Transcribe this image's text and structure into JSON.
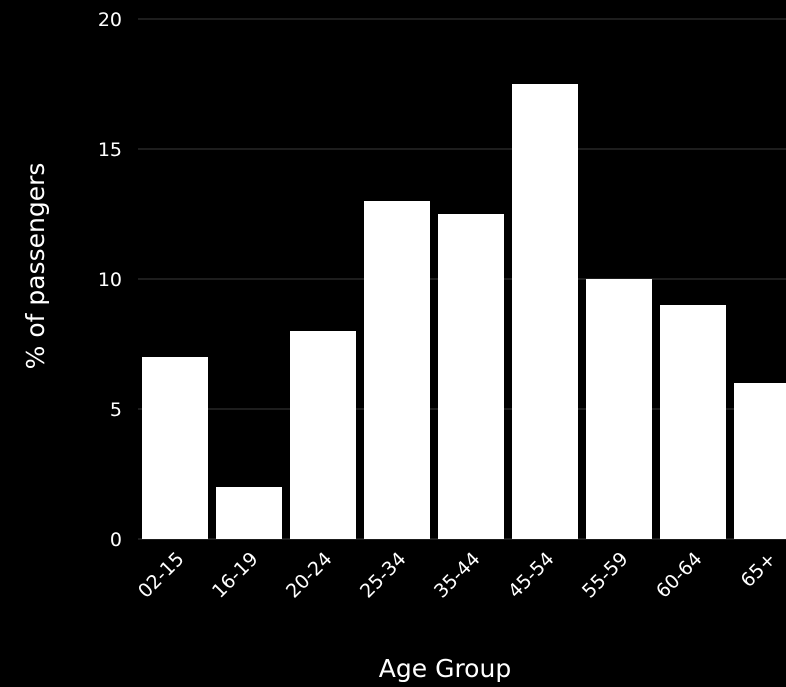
{
  "chart_data": {
    "type": "bar",
    "categories": [
      "02-15",
      "16-19",
      "20-24",
      "25-34",
      "35-44",
      "45-54",
      "55-59",
      "60-64",
      "65+"
    ],
    "series": [
      {
        "values": [
          7,
          2,
          8,
          13,
          12.5,
          17.5,
          10,
          9,
          6
        ]
      }
    ],
    "xlabel": "Age Group",
    "ylabel": "% of passengers",
    "ylim": [
      0,
      20
    ],
    "yticks": [
      0,
      5,
      10,
      15,
      20
    ],
    "grid": true,
    "legend": "none",
    "colors": {
      "background": "#000000",
      "bar": "#ffffff",
      "grid": "#3a3a3a",
      "text": "#ffffff"
    }
  }
}
